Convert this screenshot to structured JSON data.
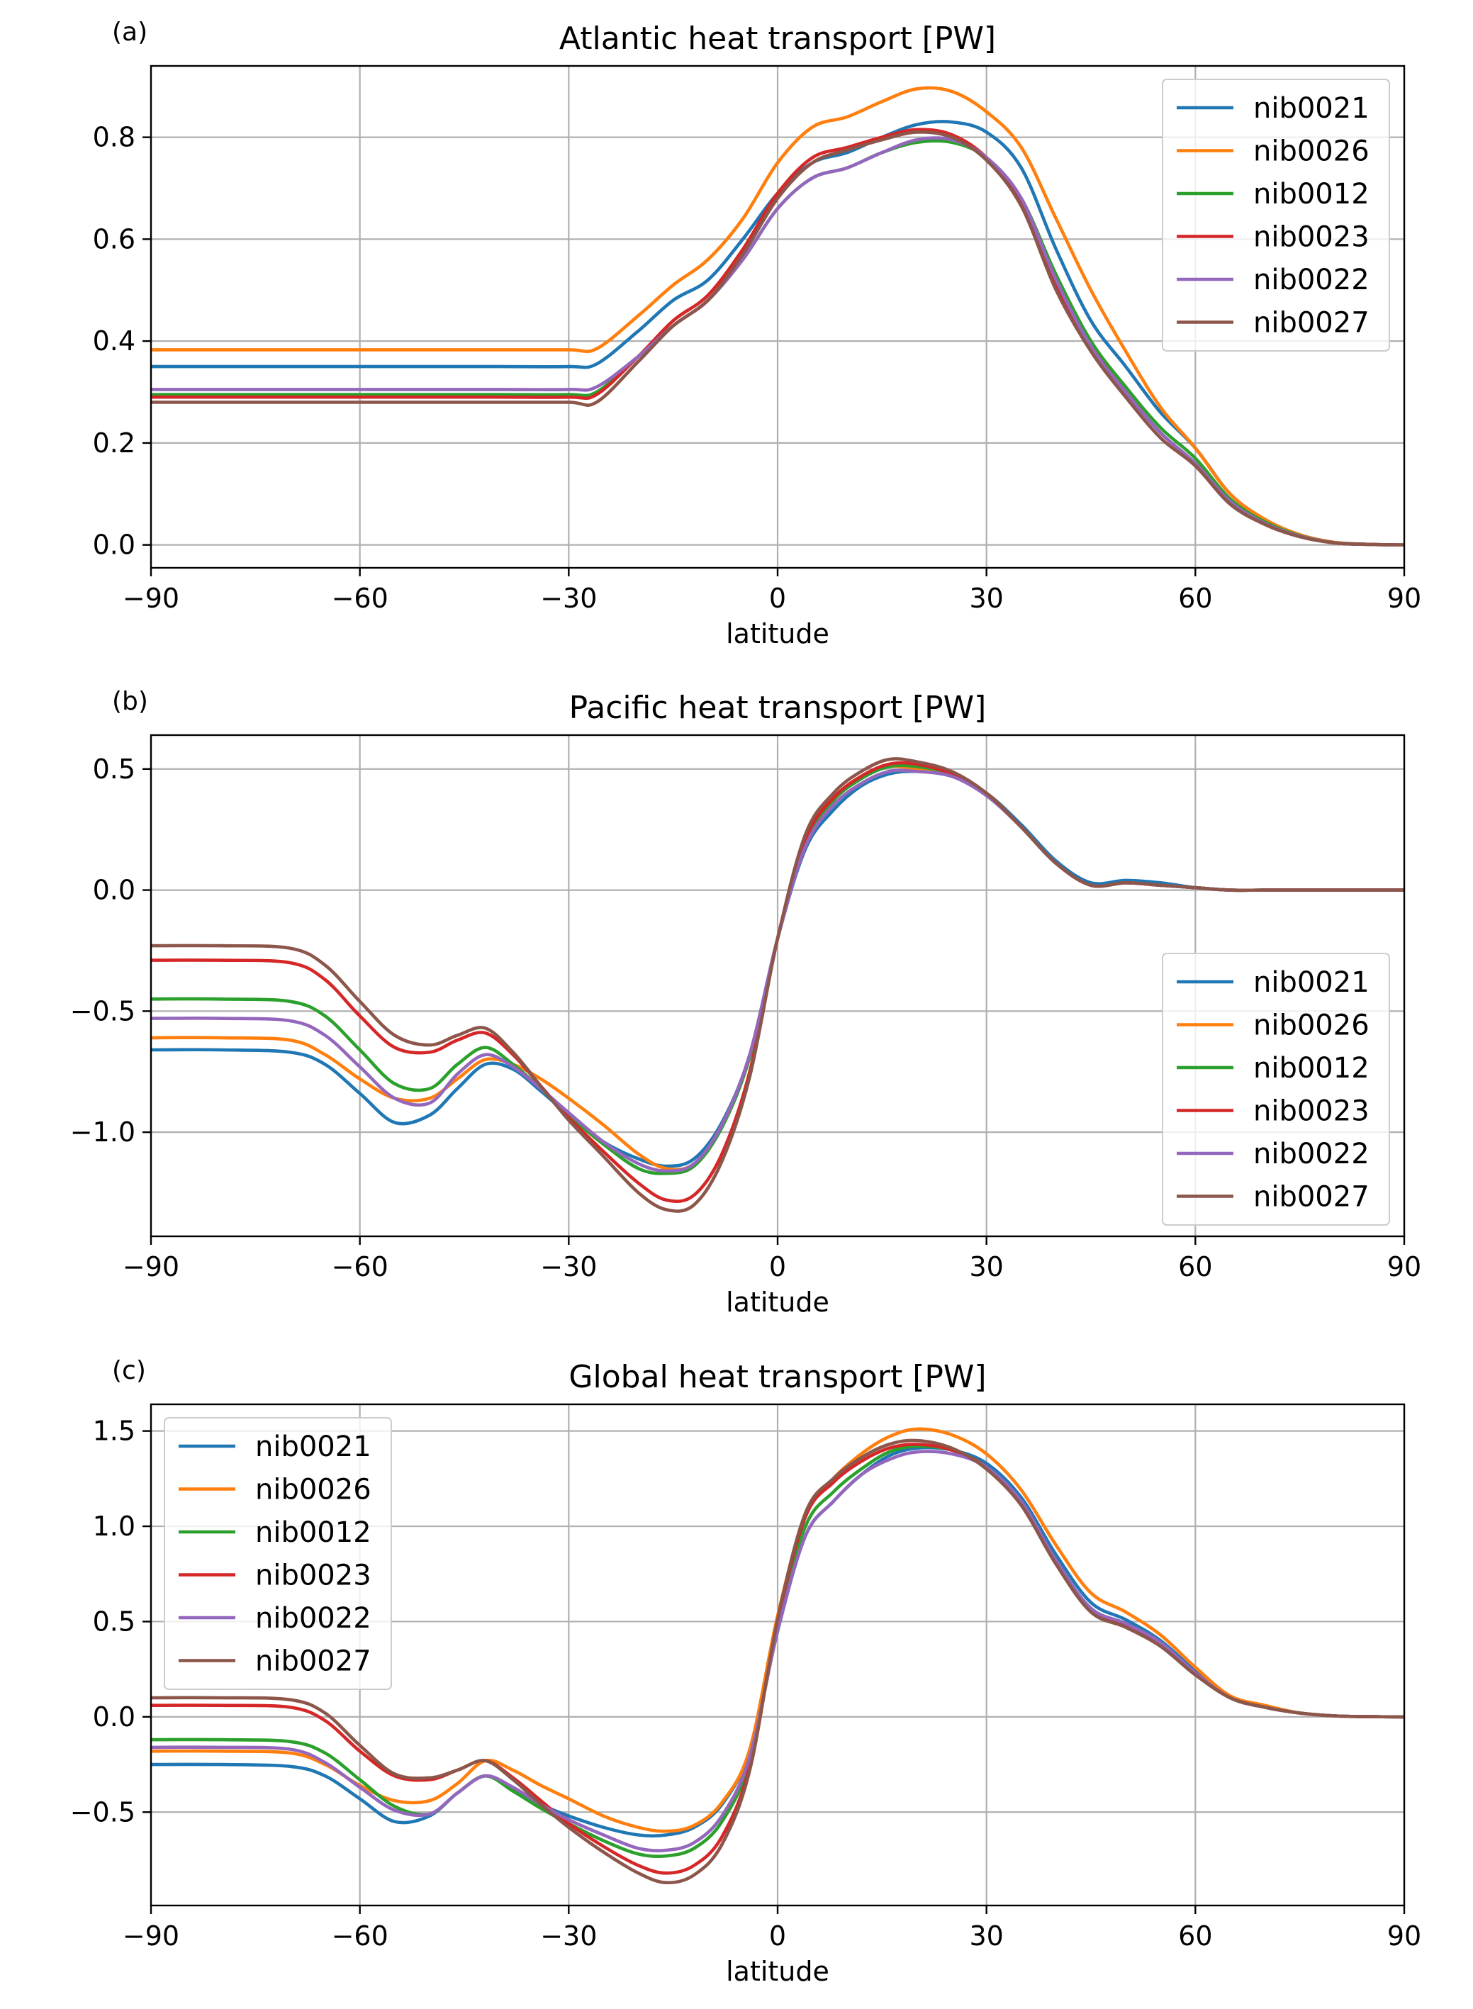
{
  "chart_data": [
    {
      "type": "line",
      "panel_label": "(a)",
      "title": "Atlantic heat transport [PW]",
      "xlabel": "latitude",
      "ylabel": "",
      "xlim": [
        -90,
        90
      ],
      "ylim": [
        -0.045,
        0.94
      ],
      "xticks": [
        -90,
        -60,
        -30,
        0,
        30,
        60,
        90
      ],
      "xtick_labels": [
        "−90",
        "−60",
        "−30",
        "0",
        "30",
        "60",
        "90"
      ],
      "yticks": [
        0.0,
        0.2,
        0.4,
        0.6,
        0.8
      ],
      "ytick_labels": [
        "0.0",
        "0.2",
        "0.4",
        "0.6",
        "0.8"
      ],
      "grid": true,
      "legend_position": "top-right",
      "x": [
        -90,
        -80,
        -70,
        -60,
        -50,
        -40,
        -30,
        -26,
        -20,
        -15,
        -10,
        -5,
        0,
        5,
        10,
        15,
        20,
        25,
        30,
        35,
        40,
        45,
        50,
        55,
        60,
        65,
        70,
        75,
        80,
        85,
        90
      ],
      "series": [
        {
          "name": "nib0021",
          "color": "#1f77b4",
          "values": [
            0.35,
            0.35,
            0.35,
            0.35,
            0.35,
            0.35,
            0.35,
            0.355,
            0.42,
            0.48,
            0.52,
            0.6,
            0.69,
            0.75,
            0.77,
            0.8,
            0.825,
            0.83,
            0.81,
            0.74,
            0.58,
            0.44,
            0.35,
            0.26,
            0.19,
            0.1,
            0.05,
            0.02,
            0.005,
            0.001,
            0.0
          ]
        },
        {
          "name": "nib0026",
          "color": "#ff7f0e",
          "values": [
            0.383,
            0.383,
            0.383,
            0.383,
            0.383,
            0.383,
            0.383,
            0.385,
            0.45,
            0.51,
            0.56,
            0.64,
            0.75,
            0.82,
            0.84,
            0.87,
            0.895,
            0.89,
            0.85,
            0.78,
            0.64,
            0.5,
            0.38,
            0.27,
            0.19,
            0.1,
            0.05,
            0.02,
            0.005,
            0.001,
            0.0
          ]
        },
        {
          "name": "nib0012",
          "color": "#2ca02c",
          "values": [
            0.295,
            0.295,
            0.295,
            0.295,
            0.295,
            0.295,
            0.295,
            0.3,
            0.37,
            0.43,
            0.48,
            0.56,
            0.66,
            0.72,
            0.74,
            0.77,
            0.79,
            0.79,
            0.76,
            0.68,
            0.53,
            0.4,
            0.31,
            0.23,
            0.17,
            0.09,
            0.045,
            0.018,
            0.004,
            0.001,
            0.0
          ]
        },
        {
          "name": "nib0023",
          "color": "#d62728",
          "values": [
            0.29,
            0.29,
            0.29,
            0.29,
            0.29,
            0.29,
            0.29,
            0.295,
            0.37,
            0.44,
            0.49,
            0.58,
            0.69,
            0.76,
            0.78,
            0.8,
            0.815,
            0.805,
            0.76,
            0.67,
            0.51,
            0.39,
            0.3,
            0.22,
            0.16,
            0.085,
            0.042,
            0.017,
            0.004,
            0.001,
            0.0
          ]
        },
        {
          "name": "nib0022",
          "color": "#9467bd",
          "values": [
            0.305,
            0.305,
            0.305,
            0.305,
            0.305,
            0.305,
            0.305,
            0.31,
            0.37,
            0.43,
            0.48,
            0.56,
            0.66,
            0.72,
            0.74,
            0.77,
            0.795,
            0.795,
            0.76,
            0.68,
            0.52,
            0.39,
            0.3,
            0.22,
            0.16,
            0.085,
            0.042,
            0.017,
            0.004,
            0.001,
            0.0
          ]
        },
        {
          "name": "nib0027",
          "color": "#8c564b",
          "values": [
            0.28,
            0.28,
            0.28,
            0.28,
            0.28,
            0.28,
            0.28,
            0.28,
            0.36,
            0.43,
            0.48,
            0.57,
            0.68,
            0.75,
            0.775,
            0.795,
            0.81,
            0.8,
            0.755,
            0.665,
            0.5,
            0.38,
            0.29,
            0.21,
            0.155,
            0.08,
            0.04,
            0.016,
            0.004,
            0.001,
            0.0
          ]
        }
      ]
    },
    {
      "type": "line",
      "panel_label": "(b)",
      "title": "Pacific heat transport [PW]",
      "xlabel": "latitude",
      "ylabel": "",
      "xlim": [
        -90,
        90
      ],
      "ylim": [
        -1.43,
        0.64
      ],
      "xticks": [
        -90,
        -60,
        -30,
        0,
        30,
        60,
        90
      ],
      "xtick_labels": [
        "−90",
        "−60",
        "−30",
        "0",
        "30",
        "60",
        "90"
      ],
      "yticks": [
        -1.0,
        -0.5,
        0.0,
        0.5
      ],
      "ytick_labels": [
        "−1.0",
        "−0.5",
        "0.0",
        "0.5"
      ],
      "grid": true,
      "legend_position": "lower-right",
      "x": [
        -90,
        -80,
        -70,
        -65,
        -60,
        -55,
        -50,
        -46,
        -42,
        -38,
        -34,
        -30,
        -25,
        -20,
        -16,
        -12,
        -8,
        -4,
        0,
        4,
        8,
        12,
        16,
        20,
        25,
        30,
        35,
        40,
        45,
        50,
        55,
        60,
        65,
        70,
        80,
        90
      ],
      "series": [
        {
          "name": "nib0021",
          "color": "#1f77b4",
          "values": [
            -0.66,
            -0.66,
            -0.67,
            -0.72,
            -0.84,
            -0.96,
            -0.93,
            -0.82,
            -0.72,
            -0.74,
            -0.83,
            -0.93,
            -1.04,
            -1.11,
            -1.14,
            -1.11,
            -0.96,
            -0.68,
            -0.2,
            0.17,
            0.33,
            0.43,
            0.48,
            0.49,
            0.47,
            0.4,
            0.27,
            0.12,
            0.03,
            0.04,
            0.03,
            0.01,
            0.0,
            0.0,
            0.0,
            0.0
          ]
        },
        {
          "name": "nib0026",
          "color": "#ff7f0e",
          "values": [
            -0.61,
            -0.61,
            -0.62,
            -0.68,
            -0.78,
            -0.86,
            -0.86,
            -0.78,
            -0.7,
            -0.72,
            -0.78,
            -0.86,
            -0.97,
            -1.09,
            -1.15,
            -1.13,
            -0.97,
            -0.68,
            -0.2,
            0.22,
            0.38,
            0.47,
            0.51,
            0.5,
            0.47,
            0.4,
            0.26,
            0.11,
            0.02,
            0.03,
            0.02,
            0.01,
            0.0,
            0.0,
            0.0,
            0.0
          ]
        },
        {
          "name": "nib0012",
          "color": "#2ca02c",
          "values": [
            -0.45,
            -0.45,
            -0.46,
            -0.52,
            -0.66,
            -0.8,
            -0.82,
            -0.72,
            -0.65,
            -0.72,
            -0.82,
            -0.93,
            -1.05,
            -1.15,
            -1.17,
            -1.14,
            -0.98,
            -0.69,
            -0.2,
            0.2,
            0.37,
            0.46,
            0.51,
            0.51,
            0.48,
            0.4,
            0.26,
            0.11,
            0.02,
            0.03,
            0.02,
            0.01,
            0.0,
            0.0,
            0.0,
            0.0
          ]
        },
        {
          "name": "nib0023",
          "color": "#d62728",
          "values": [
            -0.29,
            -0.29,
            -0.3,
            -0.37,
            -0.52,
            -0.65,
            -0.67,
            -0.62,
            -0.59,
            -0.68,
            -0.81,
            -0.94,
            -1.08,
            -1.21,
            -1.28,
            -1.26,
            -1.09,
            -0.75,
            -0.2,
            0.21,
            0.38,
            0.47,
            0.52,
            0.52,
            0.48,
            0.4,
            0.26,
            0.11,
            0.02,
            0.03,
            0.02,
            0.01,
            0.0,
            0.0,
            0.0,
            0.0
          ]
        },
        {
          "name": "nib0022",
          "color": "#9467bd",
          "values": [
            -0.53,
            -0.53,
            -0.54,
            -0.6,
            -0.73,
            -0.86,
            -0.88,
            -0.76,
            -0.68,
            -0.73,
            -0.82,
            -0.92,
            -1.04,
            -1.13,
            -1.16,
            -1.13,
            -0.97,
            -0.68,
            -0.2,
            0.18,
            0.35,
            0.44,
            0.49,
            0.49,
            0.47,
            0.39,
            0.26,
            0.11,
            0.02,
            0.03,
            0.02,
            0.01,
            0.0,
            0.0,
            0.0,
            0.0
          ]
        },
        {
          "name": "nib0027",
          "color": "#8c564b",
          "values": [
            -0.23,
            -0.23,
            -0.24,
            -0.31,
            -0.46,
            -0.6,
            -0.64,
            -0.6,
            -0.57,
            -0.67,
            -0.81,
            -0.95,
            -1.1,
            -1.25,
            -1.32,
            -1.3,
            -1.12,
            -0.77,
            -0.2,
            0.23,
            0.4,
            0.49,
            0.54,
            0.53,
            0.49,
            0.4,
            0.26,
            0.11,
            0.02,
            0.03,
            0.02,
            0.01,
            0.0,
            0.0,
            0.0,
            0.0
          ]
        }
      ]
    },
    {
      "type": "line",
      "panel_label": "(c)",
      "title": "Global heat transport [PW]",
      "xlabel": "latitude",
      "ylabel": "",
      "xlim": [
        -90,
        90
      ],
      "ylim": [
        -0.99,
        1.64
      ],
      "xticks": [
        -90,
        -60,
        -30,
        0,
        30,
        60,
        90
      ],
      "xtick_labels": [
        "−90",
        "−60",
        "−30",
        "0",
        "30",
        "60",
        "90"
      ],
      "yticks": [
        -0.5,
        0.0,
        0.5,
        1.0,
        1.5
      ],
      "ytick_labels": [
        "−0.5",
        "0.0",
        "0.5",
        "1.0",
        "1.5"
      ],
      "grid": true,
      "legend_position": "top-left",
      "x": [
        -90,
        -80,
        -70,
        -65,
        -60,
        -55,
        -50,
        -46,
        -42,
        -38,
        -34,
        -30,
        -25,
        -20,
        -16,
        -12,
        -8,
        -4,
        0,
        4,
        8,
        12,
        16,
        20,
        25,
        30,
        35,
        40,
        45,
        50,
        55,
        60,
        65,
        70,
        75,
        80,
        85,
        90
      ],
      "series": [
        {
          "name": "nib0021",
          "color": "#1f77b4",
          "values": [
            -0.25,
            -0.25,
            -0.26,
            -0.31,
            -0.43,
            -0.55,
            -0.52,
            -0.4,
            -0.31,
            -0.38,
            -0.46,
            -0.52,
            -0.58,
            -0.62,
            -0.62,
            -0.58,
            -0.46,
            -0.18,
            0.45,
            0.95,
            1.13,
            1.27,
            1.37,
            1.41,
            1.4,
            1.33,
            1.15,
            0.85,
            0.6,
            0.51,
            0.4,
            0.24,
            0.1,
            0.05,
            0.02,
            0.005,
            0.001,
            0.0
          ]
        },
        {
          "name": "nib0026",
          "color": "#ff7f0e",
          "values": [
            -0.18,
            -0.18,
            -0.19,
            -0.25,
            -0.36,
            -0.44,
            -0.44,
            -0.35,
            -0.23,
            -0.28,
            -0.36,
            -0.43,
            -0.52,
            -0.58,
            -0.6,
            -0.57,
            -0.45,
            -0.17,
            0.53,
            1.06,
            1.25,
            1.38,
            1.47,
            1.51,
            1.48,
            1.38,
            1.19,
            0.9,
            0.65,
            0.55,
            0.43,
            0.26,
            0.11,
            0.06,
            0.02,
            0.005,
            0.001,
            0.0
          ]
        },
        {
          "name": "nib0012",
          "color": "#2ca02c",
          "values": [
            -0.12,
            -0.12,
            -0.13,
            -0.19,
            -0.33,
            -0.47,
            -0.51,
            -0.4,
            -0.31,
            -0.39,
            -0.48,
            -0.56,
            -0.65,
            -0.72,
            -0.73,
            -0.69,
            -0.55,
            -0.23,
            0.48,
            1.0,
            1.18,
            1.3,
            1.39,
            1.42,
            1.4,
            1.31,
            1.12,
            0.81,
            0.56,
            0.48,
            0.38,
            0.23,
            0.1,
            0.05,
            0.02,
            0.005,
            0.001,
            0.0
          ]
        },
        {
          "name": "nib0023",
          "color": "#d62728",
          "values": [
            0.06,
            0.06,
            0.05,
            -0.02,
            -0.18,
            -0.31,
            -0.33,
            -0.28,
            -0.23,
            -0.32,
            -0.44,
            -0.56,
            -0.68,
            -0.78,
            -0.82,
            -0.78,
            -0.63,
            -0.26,
            0.5,
            1.05,
            1.23,
            1.34,
            1.41,
            1.43,
            1.4,
            1.31,
            1.12,
            0.81,
            0.56,
            0.48,
            0.38,
            0.23,
            0.1,
            0.05,
            0.02,
            0.005,
            0.001,
            0.0
          ]
        },
        {
          "name": "nib0022",
          "color": "#9467bd",
          "values": [
            -0.16,
            -0.16,
            -0.17,
            -0.24,
            -0.37,
            -0.49,
            -0.51,
            -0.4,
            -0.31,
            -0.37,
            -0.46,
            -0.54,
            -0.62,
            -0.69,
            -0.7,
            -0.66,
            -0.52,
            -0.21,
            0.45,
            0.95,
            1.13,
            1.27,
            1.35,
            1.39,
            1.38,
            1.31,
            1.13,
            0.82,
            0.57,
            0.49,
            0.39,
            0.23,
            0.1,
            0.05,
            0.02,
            0.005,
            0.001,
            0.0
          ]
        },
        {
          "name": "nib0027",
          "color": "#8c564b",
          "values": [
            0.1,
            0.1,
            0.09,
            0.02,
            -0.15,
            -0.3,
            -0.32,
            -0.28,
            -0.23,
            -0.33,
            -0.46,
            -0.58,
            -0.71,
            -0.82,
            -0.87,
            -0.83,
            -0.67,
            -0.28,
            0.51,
            1.07,
            1.25,
            1.36,
            1.43,
            1.45,
            1.41,
            1.3,
            1.11,
            0.8,
            0.55,
            0.47,
            0.37,
            0.22,
            0.1,
            0.05,
            0.02,
            0.005,
            0.001,
            0.0
          ]
        }
      ]
    }
  ]
}
